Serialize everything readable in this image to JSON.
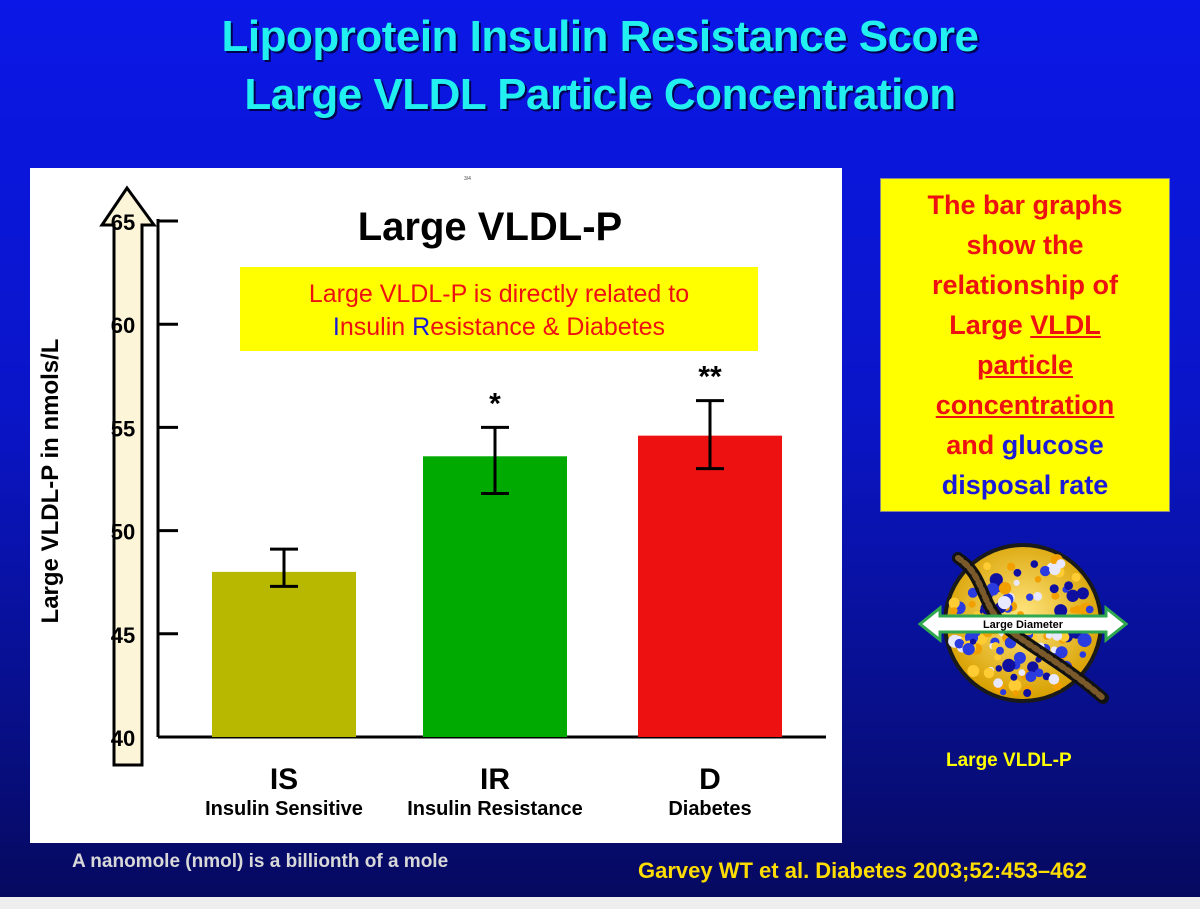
{
  "slide": {
    "title_line1": "Lipoprotein Insulin Resistance Score",
    "title_line2": "Large VLDL Particle Concentration",
    "footnote": "A nanomole (nmol) is a billionth of a mole",
    "citation": "Garvey WT et al. Diabetes 2003;52:453–462",
    "tiny_mark": "3/4"
  },
  "info_box": {
    "line1": "The bar graphs",
    "line2": "show the",
    "line3": "relationship of",
    "line4_plain": "Large ",
    "line4_underlined": "VLDL",
    "line5_underlined": "particle",
    "line6_underlined": "concentration",
    "line7_plain": "and ",
    "line7_blue": "glucose",
    "line8_blue": "disposal rate"
  },
  "particle": {
    "diameter_label": "Large Diameter",
    "caption": "Large VLDL-P"
  },
  "chart_data": {
    "type": "bar",
    "title": "Large VLDL-P",
    "annotation_box": {
      "line1": "Large VLDL-P is directly related to",
      "line2_parts": [
        {
          "text": "I",
          "color": "#1a1ad8"
        },
        {
          "text": "nsulin ",
          "color": "#ee1111"
        },
        {
          "text": "R",
          "color": "#1a1ad8"
        },
        {
          "text": "esistance &  Diabetes",
          "color": "#ee1111"
        }
      ]
    },
    "ylabel": "Large VLDL-P in nmols/L",
    "ylim": [
      40,
      65
    ],
    "yticks": [
      40,
      45,
      50,
      55,
      60,
      65
    ],
    "categories": [
      "IS",
      "IR",
      "D"
    ],
    "category_descriptions": [
      "Insulin Sensitive",
      "Insulin Resistance",
      "Diabetes"
    ],
    "values": [
      48.0,
      53.6,
      54.6
    ],
    "error_low": [
      47.3,
      51.8,
      53.0
    ],
    "error_high": [
      49.1,
      55.0,
      56.3
    ],
    "significance": [
      "",
      "*",
      "**"
    ],
    "colors": [
      "#b8b800",
      "#00aa00",
      "#ee1111"
    ]
  }
}
